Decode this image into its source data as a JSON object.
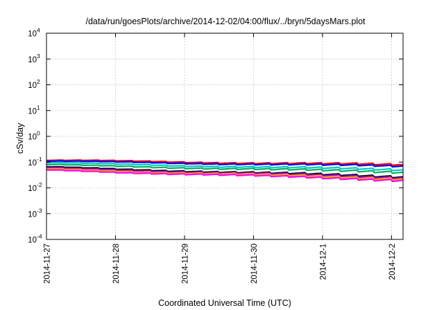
{
  "chart_data": {
    "type": "line",
    "title": "/data/run/goesPlots/archive/2014-12-02/04:00/flux/../bryn/5daysMars.plot",
    "xlabel": "Coordinated Universal Time (UTC)",
    "ylabel": "cSv/day",
    "yscale": "log",
    "ylim": [
      0.0001,
      10000
    ],
    "y_ticks": [
      {
        "base": "10",
        "exp": "4",
        "value": 10000
      },
      {
        "base": "10",
        "exp": "3",
        "value": 1000
      },
      {
        "base": "10",
        "exp": "2",
        "value": 100
      },
      {
        "base": "10",
        "exp": "1",
        "value": 10
      },
      {
        "base": "10",
        "exp": "0",
        "value": 1
      },
      {
        "base": "10",
        "exp": "-1",
        "value": 0.1
      },
      {
        "base": "10",
        "exp": "-2",
        "value": 0.01
      },
      {
        "base": "10",
        "exp": "-3",
        "value": 0.001
      },
      {
        "base": "10",
        "exp": "-4",
        "value": 0.0001
      }
    ],
    "xlim": [
      "2014-11-27T00:00",
      "2014-12-02T04:00"
    ],
    "x_ticks": [
      {
        "label": "2014-11-27",
        "date": "2014-11-27T00:00"
      },
      {
        "label": "2014-11-28",
        "date": "2014-11-28T00:00"
      },
      {
        "label": "2014-11-29",
        "date": "2014-11-29T00:00"
      },
      {
        "label": "2014-11-30",
        "date": "2014-11-30T00:00"
      },
      {
        "label": "2014-12-1",
        "date": "2014-12-01T00:00"
      },
      {
        "label": "2014-12-2",
        "date": "2014-12-02T00:00"
      }
    ],
    "grid": true,
    "series": [
      {
        "color": "#ff0000",
        "start": 0.12,
        "end": 0.085,
        "dip_amplitude": 0.012
      },
      {
        "color": "#0000ff",
        "start": 0.11,
        "end": 0.075,
        "dip_amplitude": 0.012
      },
      {
        "color": "#00c8c8",
        "start": 0.095,
        "end": 0.055,
        "dip_amplitude": 0.014
      },
      {
        "color": "#00b060",
        "start": 0.08,
        "end": 0.045,
        "dip_amplitude": 0.015
      },
      {
        "color": "#000000",
        "start": 0.065,
        "end": 0.03,
        "dip_amplitude": 0.015
      },
      {
        "color": "#9400d3",
        "start": 0.06,
        "end": 0.028,
        "dip_amplitude": 0.015
      },
      {
        "color": "#ffa500",
        "start": 0.055,
        "end": 0.025,
        "dip_amplitude": 0.015
      },
      {
        "color": "#ff00ff",
        "start": 0.05,
        "end": 0.022,
        "dip_amplitude": 0.015
      }
    ]
  }
}
